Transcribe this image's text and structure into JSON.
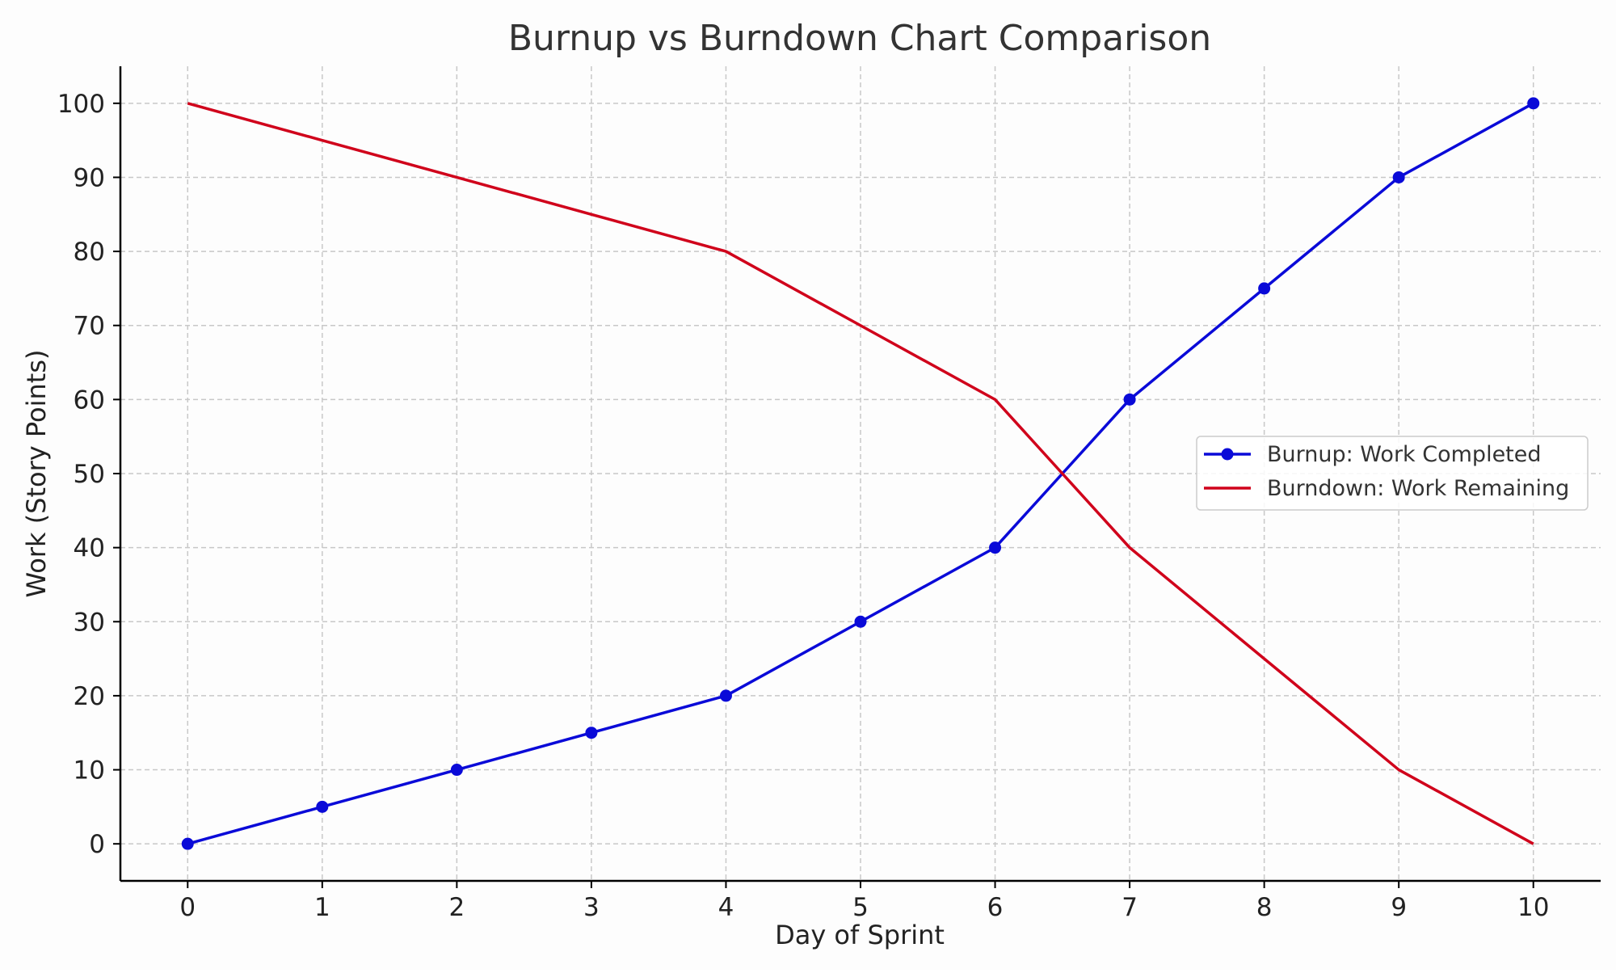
{
  "chart_data": {
    "type": "line",
    "title": "Burnup vs Burndown Chart Comparison",
    "xlabel": "Day of Sprint",
    "ylabel": "Work (Story Points)",
    "x": [
      0,
      1,
      2,
      3,
      4,
      5,
      6,
      7,
      8,
      9,
      10
    ],
    "xlim": [
      -0.5,
      10.5
    ],
    "ylim": [
      -5,
      105
    ],
    "xticks": [
      0,
      1,
      2,
      3,
      4,
      5,
      6,
      7,
      8,
      9,
      10
    ],
    "yticks": [
      0,
      10,
      20,
      30,
      40,
      50,
      60,
      70,
      80,
      90,
      100
    ],
    "grid": true,
    "legend_position": "center-right",
    "series": [
      {
        "name": "Burnup: Work Completed",
        "values": [
          0,
          5,
          10,
          15,
          20,
          30,
          40,
          60,
          75,
          90,
          100
        ],
        "color": "#0a0ad8",
        "markers": true
      },
      {
        "name": "Burndown: Work Remaining",
        "values": [
          100,
          95,
          90,
          85,
          80,
          70,
          60,
          40,
          25,
          10,
          0
        ],
        "color": "#d0021b",
        "markers": false
      }
    ]
  }
}
